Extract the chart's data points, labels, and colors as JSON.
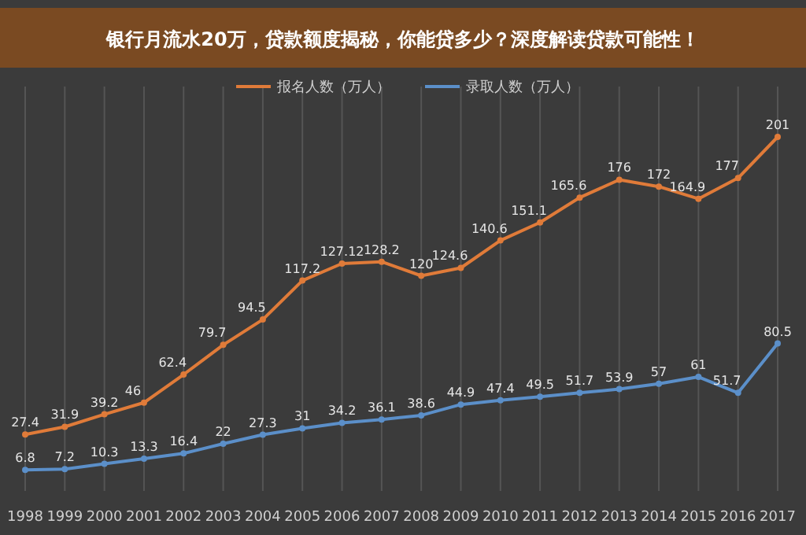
{
  "chart_data": {
    "type": "line",
    "title": "银行月流水20万，贷款额度揭秘，你能贷多少？深度解读贷款可能性！",
    "categories": [
      "1998",
      "1999",
      "2000",
      "2001",
      "2002",
      "2003",
      "2004",
      "2005",
      "2006",
      "2007",
      "2008",
      "2009",
      "2010",
      "2011",
      "2012",
      "2013",
      "2014",
      "2015",
      "2016",
      "2017"
    ],
    "series": [
      {
        "name": "报名人数（万人）",
        "color": "#e07b39",
        "values": [
          27.4,
          31.9,
          39.2,
          46,
          62.4,
          79.7,
          94.5,
          117.2,
          127.12,
          128.2,
          120,
          124.6,
          140.6,
          151.1,
          165.6,
          176,
          172,
          164.9,
          177,
          201
        ]
      },
      {
        "name": "录取人数（万人）",
        "color": "#5b8fc9",
        "values": [
          6.8,
          7.2,
          10.3,
          13.3,
          16.4,
          22,
          27.3,
          31,
          34.2,
          36.1,
          38.6,
          44.9,
          47.4,
          49.5,
          51.7,
          53.9,
          57,
          61,
          51.7,
          80.5
        ]
      }
    ],
    "data_labels": true,
    "grid": "x",
    "legend": "top",
    "marker": "circle"
  }
}
